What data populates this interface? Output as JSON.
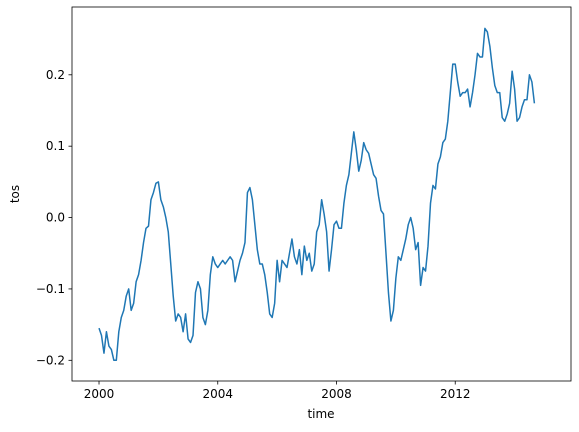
{
  "chart_data": {
    "type": "line",
    "xlabel": "time",
    "ylabel": "tos",
    "xlim": [
      1999.09,
      2015.9
    ],
    "ylim": [
      -0.229,
      0.295
    ],
    "xticks": [
      2000,
      2004,
      2008,
      2012
    ],
    "yticks": [
      {
        "value": -0.2,
        "label": "−0.2"
      },
      {
        "value": -0.1,
        "label": "−0.1"
      },
      {
        "value": 0,
        "label": "0.0"
      },
      0.1,
      0.2
    ],
    "grid": false,
    "x": [
      2000,
      2000.083,
      2000.167,
      2000.25,
      2000.333,
      2000.417,
      2000.5,
      2000.583,
      2000.667,
      2000.75,
      2000.833,
      2000.917,
      2001,
      2001.083,
      2001.167,
      2001.25,
      2001.333,
      2001.417,
      2001.5,
      2001.583,
      2001.667,
      2001.75,
      2001.833,
      2001.917,
      2002,
      2002.083,
      2002.167,
      2002.25,
      2002.333,
      2002.417,
      2002.5,
      2002.583,
      2002.667,
      2002.75,
      2002.833,
      2002.917,
      2003,
      2003.083,
      2003.167,
      2003.25,
      2003.333,
      2003.417,
      2003.5,
      2003.583,
      2003.667,
      2003.75,
      2003.833,
      2003.917,
      2004,
      2004.083,
      2004.167,
      2004.25,
      2004.333,
      2004.417,
      2004.5,
      2004.583,
      2004.667,
      2004.75,
      2004.833,
      2004.917,
      2005,
      2005.083,
      2005.167,
      2005.25,
      2005.333,
      2005.417,
      2005.5,
      2005.583,
      2005.667,
      2005.75,
      2005.833,
      2005.917,
      2006,
      2006.083,
      2006.167,
      2006.25,
      2006.333,
      2006.417,
      2006.5,
      2006.583,
      2006.667,
      2006.75,
      2006.833,
      2006.917,
      2007,
      2007.083,
      2007.167,
      2007.25,
      2007.333,
      2007.417,
      2007.5,
      2007.583,
      2007.667,
      2007.75,
      2007.833,
      2007.917,
      2008,
      2008.083,
      2008.167,
      2008.25,
      2008.333,
      2008.417,
      2008.5,
      2008.583,
      2008.667,
      2008.75,
      2008.833,
      2008.917,
      2009,
      2009.083,
      2009.167,
      2009.25,
      2009.333,
      2009.417,
      2009.5,
      2009.583,
      2009.667,
      2009.75,
      2009.833,
      2009.917,
      2010,
      2010.083,
      2010.167,
      2010.25,
      2010.333,
      2010.417,
      2010.5,
      2010.583,
      2010.667,
      2010.75,
      2010.833,
      2010.917,
      2011,
      2011.083,
      2011.167,
      2011.25,
      2011.333,
      2011.417,
      2011.5,
      2011.583,
      2011.667,
      2011.75,
      2011.833,
      2011.917,
      2012,
      2012.083,
      2012.167,
      2012.25,
      2012.333,
      2012.417,
      2012.5,
      2012.583,
      2012.667,
      2012.75,
      2012.833,
      2012.917,
      2013,
      2013.083,
      2013.167,
      2013.25,
      2013.333,
      2013.417,
      2013.5,
      2013.583,
      2013.667,
      2013.75,
      2013.833,
      2013.917,
      2014,
      2014.083,
      2014.167,
      2014.25,
      2014.333,
      2014.417,
      2014.5,
      2014.583,
      2014.667
    ],
    "series": [
      {
        "color": "#1f77b4",
        "values": [
          -0.155,
          -0.165,
          -0.19,
          -0.16,
          -0.18,
          -0.185,
          -0.2,
          -0.2,
          -0.16,
          -0.14,
          -0.13,
          -0.11,
          -0.1,
          -0.13,
          -0.12,
          -0.09,
          -0.08,
          -0.06,
          -0.035,
          -0.015,
          -0.012,
          0.025,
          0.035,
          0.048,
          0.05,
          0.025,
          0.015,
          0.0,
          -0.02,
          -0.065,
          -0.11,
          -0.145,
          -0.135,
          -0.14,
          -0.16,
          -0.135,
          -0.17,
          -0.175,
          -0.165,
          -0.105,
          -0.09,
          -0.1,
          -0.14,
          -0.15,
          -0.13,
          -0.08,
          -0.055,
          -0.065,
          -0.07,
          -0.065,
          -0.06,
          -0.065,
          -0.06,
          -0.055,
          -0.06,
          -0.09,
          -0.075,
          -0.06,
          -0.05,
          -0.035,
          0.035,
          0.042,
          0.025,
          -0.01,
          -0.045,
          -0.065,
          -0.065,
          -0.08,
          -0.105,
          -0.135,
          -0.14,
          -0.12,
          -0.06,
          -0.09,
          -0.06,
          -0.065,
          -0.07,
          -0.05,
          -0.03,
          -0.055,
          -0.065,
          -0.045,
          -0.08,
          -0.04,
          -0.06,
          -0.05,
          -0.075,
          -0.065,
          -0.02,
          -0.01,
          0.025,
          0.005,
          -0.02,
          -0.075,
          -0.045,
          -0.01,
          -0.005,
          -0.015,
          -0.015,
          0.02,
          0.045,
          0.06,
          0.09,
          0.12,
          0.095,
          0.065,
          0.08,
          0.105,
          0.095,
          0.09,
          0.075,
          0.06,
          0.055,
          0.03,
          0.01,
          0.005,
          -0.05,
          -0.105,
          -0.145,
          -0.13,
          -0.085,
          -0.055,
          -0.06,
          -0.045,
          -0.03,
          -0.01,
          0.0,
          -0.015,
          -0.045,
          -0.035,
          -0.095,
          -0.07,
          -0.075,
          -0.04,
          0.02,
          0.045,
          0.04,
          0.075,
          0.085,
          0.105,
          0.11,
          0.135,
          0.175,
          0.215,
          0.215,
          0.19,
          0.17,
          0.175,
          0.175,
          0.18,
          0.155,
          0.175,
          0.2,
          0.23,
          0.225,
          0.225,
          0.265,
          0.26,
          0.24,
          0.21,
          0.185,
          0.175,
          0.175,
          0.14,
          0.135,
          0.145,
          0.16,
          0.205,
          0.18,
          0.135,
          0.14,
          0.155,
          0.165,
          0.165,
          0.2,
          0.19,
          0.16
        ]
      }
    ]
  }
}
